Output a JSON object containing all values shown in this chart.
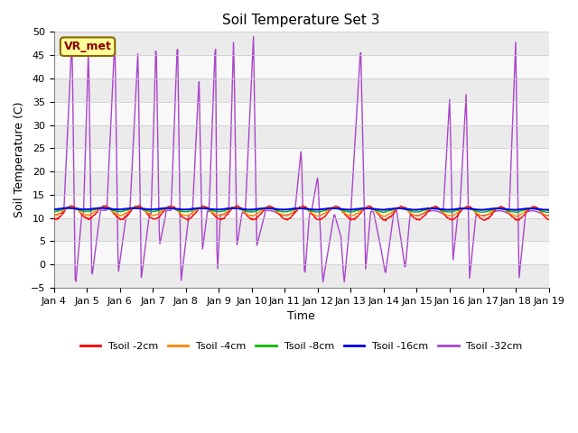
{
  "title": "Soil Temperature Set 3",
  "xlabel": "Time",
  "ylabel": "Soil Temperature (C)",
  "ylim": [
    -5,
    50
  ],
  "xlim": [
    0,
    15
  ],
  "x_tick_labels": [
    "Jan 4",
    "Jan 5",
    "Jan 6",
    "Jan 7",
    "Jan 8",
    "Jan 9",
    "Jan 10",
    "Jan 11",
    "Jan 12",
    "Jan 13",
    "Jan 14",
    "Jan 15",
    "Jan 16",
    "Jan 17",
    "Jan 18",
    "Jan 19"
  ],
  "legend_labels": [
    "Tsoil -2cm",
    "Tsoil -4cm",
    "Tsoil -8cm",
    "Tsoil -16cm",
    "Tsoil -32cm"
  ],
  "legend_colors": [
    "#ff0000",
    "#ff8800",
    "#00bb00",
    "#0000ee",
    "#aa44cc"
  ],
  "annotation_text": "VR_met",
  "annotation_bg": "#ffff99",
  "annotation_border": "#886600",
  "bg_colors_alt": [
    "#ebebeb",
    "#f8f8f8"
  ],
  "band_edges": [
    -5,
    0,
    5,
    10,
    15,
    20,
    25,
    30,
    35,
    40,
    45,
    50
  ],
  "grid_color": "#cccccc",
  "line_width": 1.0,
  "title_fontsize": 11,
  "label_fontsize": 9,
  "tick_fontsize": 8
}
